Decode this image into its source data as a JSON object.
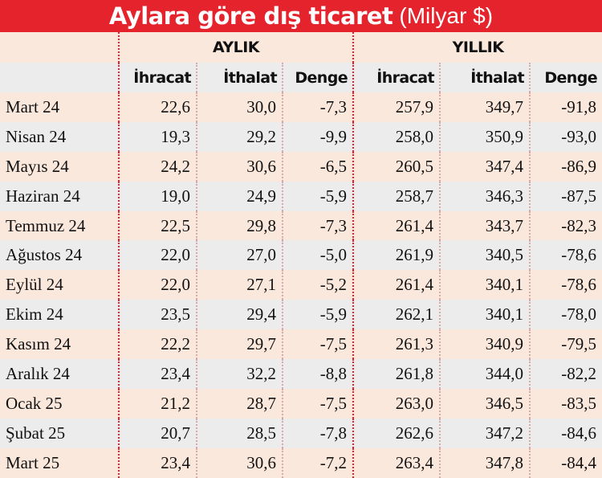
{
  "title": {
    "main": "Aylara göre dış ticaret",
    "unit": "(Milyar $)"
  },
  "groups": {
    "monthly": "AYLIK",
    "yearly": "YILLIK"
  },
  "columns": [
    "İhracat",
    "İthalat",
    "Denge",
    "İhracat",
    "İthalat",
    "Denge"
  ],
  "rows": [
    {
      "month": "Mart 24",
      "values": [
        "22,6",
        "30,0",
        "-7,3",
        "257,9",
        "349,7",
        "-91,8"
      ]
    },
    {
      "month": "Nisan 24",
      "values": [
        "19,3",
        "29,2",
        "-9,9",
        "258,0",
        "350,9",
        "-93,0"
      ]
    },
    {
      "month": "Mayıs 24",
      "values": [
        "24,2",
        "30,6",
        "-6,5",
        "260,5",
        "347,4",
        "-86,9"
      ]
    },
    {
      "month": "Haziran 24",
      "values": [
        "19,0",
        "24,9",
        "-5,9",
        "258,7",
        "346,3",
        "-87,5"
      ]
    },
    {
      "month": "Temmuz 24",
      "values": [
        "22,5",
        "29,8",
        "-7,3",
        "261,4",
        "343,7",
        "-82,3"
      ]
    },
    {
      "month": "Ağustos 24",
      "values": [
        "22,0",
        "27,0",
        "-5,0",
        "261,9",
        "340,5",
        "-78,6"
      ]
    },
    {
      "month": "Eylül 24",
      "values": [
        "22,0",
        "27,1",
        "-5,2",
        "261,4",
        "340,1",
        "-78,6"
      ]
    },
    {
      "month": "Ekim 24",
      "values": [
        "23,5",
        "29,4",
        "-5,9",
        "262,1",
        "340,1",
        "-78,0"
      ]
    },
    {
      "month": "Kasım 24",
      "values": [
        "22,2",
        "29,7",
        "-7,5",
        "261,3",
        "340,9",
        "-79,5"
      ]
    },
    {
      "month": "Aralık 24",
      "values": [
        "23,4",
        "32,2",
        "-8,8",
        "261,8",
        "344,0",
        "-82,2"
      ]
    },
    {
      "month": "Ocak 25",
      "values": [
        "21,2",
        "28,7",
        "-7,5",
        "263,0",
        "346,5",
        "-83,5"
      ]
    },
    {
      "month": "Şubat 25",
      "values": [
        "20,7",
        "28,5",
        "-7,8",
        "262,6",
        "347,2",
        "-84,6"
      ]
    },
    {
      "month": "Mart 25",
      "values": [
        "23,4",
        "30,6",
        "-7,2",
        "263,4",
        "347,8",
        "-84,4"
      ]
    }
  ],
  "colors": {
    "title_bg": "#e5232c",
    "row_peach": "#fbe8dd",
    "row_gray": "#ececec"
  }
}
